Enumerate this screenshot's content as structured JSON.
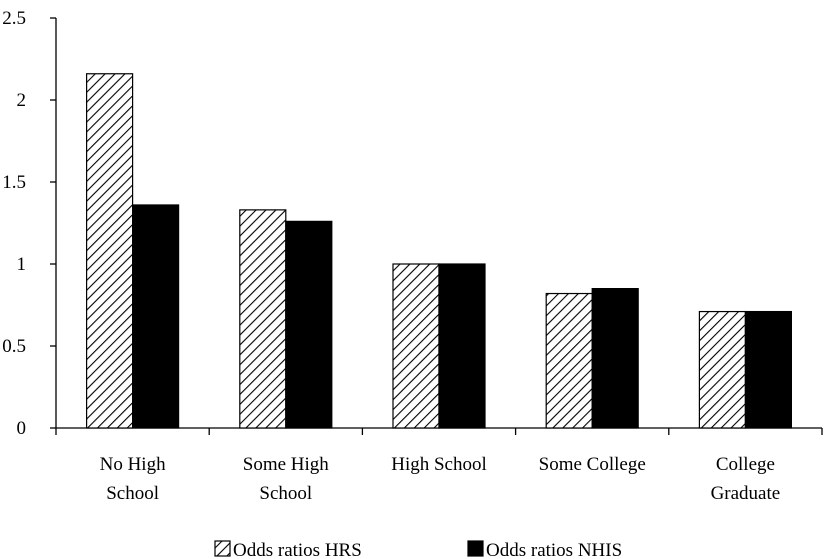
{
  "chart_data": {
    "type": "bar",
    "categories": [
      [
        "No High",
        "School"
      ],
      [
        "Some High",
        "School"
      ],
      [
        "High School"
      ],
      [
        "Some College"
      ],
      [
        "College",
        "Graduate"
      ]
    ],
    "series": [
      {
        "name": "Odds ratios HRS",
        "values": [
          2.16,
          1.33,
          1.0,
          0.82,
          0.71
        ],
        "pattern": "hatched"
      },
      {
        "name": "Odds ratios NHIS",
        "values": [
          1.36,
          1.26,
          1.0,
          0.85,
          0.71
        ],
        "pattern": "solid"
      }
    ],
    "yticks": [
      "0",
      "0.5",
      "1",
      "1.5",
      "2",
      "2.5"
    ],
    "ylim": [
      0,
      2.5
    ],
    "grid": false,
    "legend": "bottom",
    "colors": {
      "bar_fill": "#000000",
      "bar_stroke": "#000000",
      "background": "#ffffff"
    }
  }
}
